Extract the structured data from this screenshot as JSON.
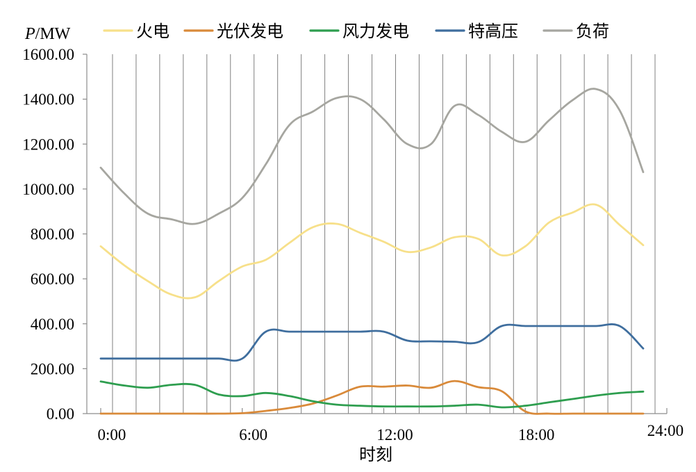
{
  "chart_data": {
    "type": "line",
    "ylabel": "P/MW",
    "xlabel": "时刻",
    "ylim": [
      0,
      1600
    ],
    "xlim": [
      0,
      24
    ],
    "y_ticks": [
      "0.00",
      "200.00",
      "400.00",
      "600.00",
      "800.00",
      "1000.00",
      "1200.00",
      "1400.00",
      "1600.00"
    ],
    "x_ticks": [
      "0:00",
      "6:00",
      "12:00",
      "18:00",
      "24:00"
    ],
    "grid": "vertical",
    "legend_position": "top",
    "series": [
      {
        "name": "火电",
        "color": "#F7E08A",
        "x": [
          0,
          1,
          2,
          3,
          4,
          5,
          6,
          7,
          8,
          9,
          10,
          11,
          12,
          13,
          14,
          15,
          16,
          17,
          18,
          19,
          20,
          21,
          22,
          23
        ],
        "values": [
          745,
          660,
          590,
          530,
          518,
          590,
          655,
          685,
          760,
          830,
          845,
          805,
          765,
          720,
          740,
          785,
          778,
          705,
          745,
          850,
          895,
          930,
          840,
          750
        ]
      },
      {
        "name": "光伏发电",
        "color": "#D98A3A",
        "x": [
          0,
          1,
          2,
          3,
          4,
          5,
          6,
          7,
          8,
          9,
          10,
          11,
          12,
          13,
          14,
          15,
          16,
          17,
          18,
          19,
          20,
          21,
          22,
          23
        ],
        "values": [
          0,
          0,
          0,
          0,
          0,
          0,
          2,
          12,
          25,
          45,
          80,
          120,
          120,
          125,
          115,
          145,
          118,
          100,
          10,
          0,
          0,
          0,
          0,
          0
        ]
      },
      {
        "name": "风力发电",
        "color": "#2E9E4F",
        "x": [
          0,
          1,
          2,
          3,
          4,
          5,
          6,
          7,
          8,
          9,
          10,
          11,
          12,
          13,
          14,
          15,
          16,
          17,
          18,
          19,
          20,
          21,
          22,
          23
        ],
        "values": [
          143,
          125,
          115,
          128,
          128,
          85,
          78,
          92,
          78,
          55,
          40,
          35,
          32,
          32,
          32,
          35,
          40,
          28,
          35,
          50,
          65,
          80,
          92,
          98
        ]
      },
      {
        "name": "特高压",
        "color": "#3F6E9E",
        "x": [
          0,
          1,
          2,
          3,
          4,
          5,
          6,
          7,
          8,
          9,
          10,
          11,
          12,
          13,
          14,
          15,
          16,
          17,
          18,
          19,
          20,
          21,
          22,
          23
        ],
        "values": [
          245,
          245,
          245,
          245,
          245,
          245,
          245,
          365,
          365,
          365,
          365,
          365,
          365,
          325,
          322,
          320,
          318,
          390,
          390,
          390,
          390,
          390,
          390,
          290
        ]
      },
      {
        "name": "负荷",
        "color": "#A6A6A0",
        "x": [
          0,
          1,
          2,
          3,
          4,
          5,
          6,
          7,
          8,
          9,
          10,
          11,
          12,
          13,
          14,
          15,
          16,
          17,
          18,
          19,
          20,
          21,
          22,
          23
        ],
        "values": [
          1095,
          980,
          890,
          865,
          845,
          890,
          960,
          1110,
          1285,
          1345,
          1405,
          1400,
          1310,
          1200,
          1200,
          1370,
          1330,
          1255,
          1210,
          1305,
          1395,
          1445,
          1350,
          1075
        ]
      }
    ]
  }
}
